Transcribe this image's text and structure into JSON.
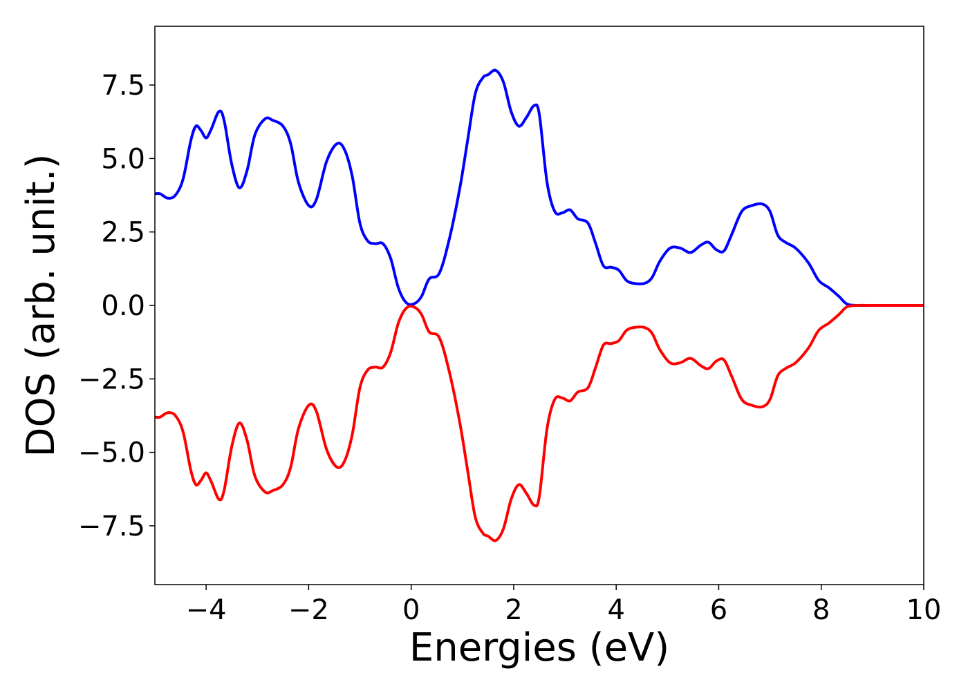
{
  "chart_data": {
    "type": "line",
    "title": "",
    "xlabel": "Energies (eV)",
    "ylabel": "DOS (arb. unit.)",
    "xlim": [
      -5,
      10
    ],
    "ylim": [
      -9.5,
      9.5
    ],
    "grid": false,
    "legend": "none",
    "x_ticks": [
      -4,
      -2,
      0,
      2,
      4,
      6,
      8,
      10
    ],
    "x_tick_labels": [
      "−4",
      "−2",
      "0",
      "2",
      "4",
      "6",
      "8",
      "10"
    ],
    "y_ticks": [
      7.5,
      5.0,
      2.5,
      0.0,
      -2.5,
      -5.0,
      -7.5
    ],
    "y_tick_labels": [
      "7.5",
      "5.0",
      "2.5",
      "0.0",
      "−2.5",
      "−5.0",
      "−7.5"
    ],
    "series": [
      {
        "color": "#0000ff",
        "points": [
          [
            -5.0,
            3.8
          ],
          [
            -4.9,
            3.8
          ],
          [
            -4.75,
            3.65
          ],
          [
            -4.6,
            3.75
          ],
          [
            -4.45,
            4.3
          ],
          [
            -4.3,
            5.6
          ],
          [
            -4.2,
            6.1
          ],
          [
            -4.1,
            5.95
          ],
          [
            -4.0,
            5.7
          ],
          [
            -3.9,
            6.0
          ],
          [
            -3.75,
            6.6
          ],
          [
            -3.65,
            6.3
          ],
          [
            -3.5,
            4.8
          ],
          [
            -3.35,
            4.0
          ],
          [
            -3.2,
            4.6
          ],
          [
            -3.05,
            5.8
          ],
          [
            -2.85,
            6.35
          ],
          [
            -2.7,
            6.3
          ],
          [
            -2.5,
            6.1
          ],
          [
            -2.35,
            5.5
          ],
          [
            -2.2,
            4.2
          ],
          [
            -2.0,
            3.4
          ],
          [
            -1.85,
            3.6
          ],
          [
            -1.65,
            4.9
          ],
          [
            -1.45,
            5.5
          ],
          [
            -1.3,
            5.3
          ],
          [
            -1.15,
            4.4
          ],
          [
            -1.0,
            2.8
          ],
          [
            -0.85,
            2.2
          ],
          [
            -0.7,
            2.1
          ],
          [
            -0.55,
            2.1
          ],
          [
            -0.4,
            1.6
          ],
          [
            -0.25,
            0.6
          ],
          [
            -0.1,
            0.1
          ],
          [
            0.05,
            0.05
          ],
          [
            0.2,
            0.3
          ],
          [
            0.35,
            0.9
          ],
          [
            0.55,
            1.1
          ],
          [
            0.75,
            2.3
          ],
          [
            0.95,
            4.0
          ],
          [
            1.1,
            5.6
          ],
          [
            1.25,
            7.2
          ],
          [
            1.4,
            7.75
          ],
          [
            1.5,
            7.85
          ],
          [
            1.65,
            8.0
          ],
          [
            1.8,
            7.6
          ],
          [
            1.95,
            6.6
          ],
          [
            2.1,
            6.1
          ],
          [
            2.25,
            6.4
          ],
          [
            2.4,
            6.8
          ],
          [
            2.5,
            6.5
          ],
          [
            2.65,
            4.2
          ],
          [
            2.8,
            3.2
          ],
          [
            2.95,
            3.15
          ],
          [
            3.1,
            3.25
          ],
          [
            3.25,
            2.95
          ],
          [
            3.45,
            2.8
          ],
          [
            3.6,
            2.1
          ],
          [
            3.75,
            1.35
          ],
          [
            3.9,
            1.3
          ],
          [
            4.05,
            1.2
          ],
          [
            4.2,
            0.85
          ],
          [
            4.35,
            0.75
          ],
          [
            4.55,
            0.75
          ],
          [
            4.7,
            0.95
          ],
          [
            4.85,
            1.5
          ],
          [
            5.05,
            1.95
          ],
          [
            5.25,
            1.95
          ],
          [
            5.45,
            1.8
          ],
          [
            5.65,
            2.05
          ],
          [
            5.8,
            2.15
          ],
          [
            5.95,
            1.9
          ],
          [
            6.1,
            1.85
          ],
          [
            6.25,
            2.4
          ],
          [
            6.45,
            3.2
          ],
          [
            6.65,
            3.4
          ],
          [
            6.85,
            3.45
          ],
          [
            7.0,
            3.2
          ],
          [
            7.15,
            2.4
          ],
          [
            7.3,
            2.15
          ],
          [
            7.5,
            1.95
          ],
          [
            7.75,
            1.45
          ],
          [
            7.95,
            0.85
          ],
          [
            8.15,
            0.6
          ],
          [
            8.35,
            0.3
          ],
          [
            8.5,
            0.05
          ],
          [
            8.7,
            0.0
          ],
          [
            9.0,
            0.0
          ],
          [
            10.0,
            0.0
          ]
        ]
      },
      {
        "color": "#ff0000",
        "points": [
          [
            -5.0,
            -3.8
          ],
          [
            -4.9,
            -3.8
          ],
          [
            -4.75,
            -3.65
          ],
          [
            -4.6,
            -3.75
          ],
          [
            -4.45,
            -4.3
          ],
          [
            -4.3,
            -5.6
          ],
          [
            -4.2,
            -6.1
          ],
          [
            -4.1,
            -5.95
          ],
          [
            -4.0,
            -5.7
          ],
          [
            -3.9,
            -6.0
          ],
          [
            -3.75,
            -6.6
          ],
          [
            -3.65,
            -6.3
          ],
          [
            -3.5,
            -4.8
          ],
          [
            -3.35,
            -4.0
          ],
          [
            -3.2,
            -4.6
          ],
          [
            -3.05,
            -5.8
          ],
          [
            -2.85,
            -6.35
          ],
          [
            -2.7,
            -6.3
          ],
          [
            -2.5,
            -6.1
          ],
          [
            -2.35,
            -5.5
          ],
          [
            -2.2,
            -4.2
          ],
          [
            -2.0,
            -3.4
          ],
          [
            -1.85,
            -3.6
          ],
          [
            -1.65,
            -4.9
          ],
          [
            -1.45,
            -5.5
          ],
          [
            -1.3,
            -5.3
          ],
          [
            -1.15,
            -4.4
          ],
          [
            -1.0,
            -2.8
          ],
          [
            -0.85,
            -2.2
          ],
          [
            -0.7,
            -2.1
          ],
          [
            -0.55,
            -2.1
          ],
          [
            -0.4,
            -1.6
          ],
          [
            -0.25,
            -0.6
          ],
          [
            -0.1,
            -0.1
          ],
          [
            0.05,
            -0.05
          ],
          [
            0.2,
            -0.3
          ],
          [
            0.35,
            -0.9
          ],
          [
            0.55,
            -1.1
          ],
          [
            0.75,
            -2.3
          ],
          [
            0.95,
            -4.0
          ],
          [
            1.1,
            -5.6
          ],
          [
            1.25,
            -7.2
          ],
          [
            1.4,
            -7.75
          ],
          [
            1.5,
            -7.85
          ],
          [
            1.65,
            -8.0
          ],
          [
            1.8,
            -7.6
          ],
          [
            1.95,
            -6.6
          ],
          [
            2.1,
            -6.1
          ],
          [
            2.25,
            -6.4
          ],
          [
            2.4,
            -6.8
          ],
          [
            2.5,
            -6.5
          ],
          [
            2.65,
            -4.2
          ],
          [
            2.8,
            -3.2
          ],
          [
            2.95,
            -3.15
          ],
          [
            3.1,
            -3.25
          ],
          [
            3.25,
            -2.95
          ],
          [
            3.45,
            -2.8
          ],
          [
            3.6,
            -2.1
          ],
          [
            3.75,
            -1.35
          ],
          [
            3.9,
            -1.3
          ],
          [
            4.05,
            -1.2
          ],
          [
            4.2,
            -0.85
          ],
          [
            4.35,
            -0.75
          ],
          [
            4.55,
            -0.75
          ],
          [
            4.7,
            -0.95
          ],
          [
            4.85,
            -1.5
          ],
          [
            5.05,
            -1.95
          ],
          [
            5.25,
            -1.95
          ],
          [
            5.45,
            -1.8
          ],
          [
            5.65,
            -2.05
          ],
          [
            5.8,
            -2.15
          ],
          [
            5.95,
            -1.9
          ],
          [
            6.1,
            -1.85
          ],
          [
            6.25,
            -2.4
          ],
          [
            6.45,
            -3.2
          ],
          [
            6.65,
            -3.4
          ],
          [
            6.85,
            -3.45
          ],
          [
            7.0,
            -3.2
          ],
          [
            7.15,
            -2.4
          ],
          [
            7.3,
            -2.15
          ],
          [
            7.5,
            -1.95
          ],
          [
            7.75,
            -1.45
          ],
          [
            7.95,
            -0.85
          ],
          [
            8.15,
            -0.6
          ],
          [
            8.35,
            -0.3
          ],
          [
            8.5,
            -0.05
          ],
          [
            8.7,
            0.0
          ],
          [
            9.0,
            0.0
          ],
          [
            10.0,
            0.0
          ]
        ]
      }
    ]
  }
}
